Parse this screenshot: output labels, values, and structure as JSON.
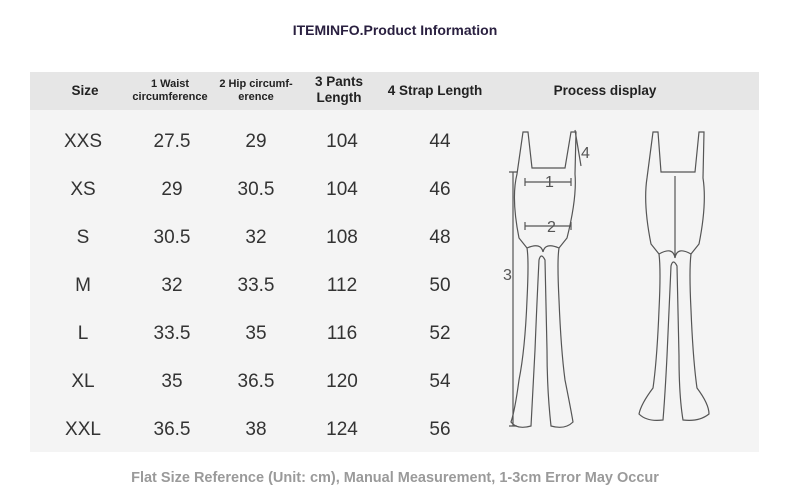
{
  "title": "ITEMINFO.Product Information",
  "headers": {
    "size": "Size",
    "waist_1": "1 Waist",
    "waist_2": "circumference",
    "hip_1": "2 Hip circumf-",
    "hip_2": "erence",
    "pants_1": "3 Pants",
    "pants_2": "Length",
    "strap": "4 Strap Length",
    "process": "Process display"
  },
  "rows": [
    {
      "size": "XXS",
      "waist": "27.5",
      "hip": "29",
      "pants": "104",
      "strap": "44"
    },
    {
      "size": "XS",
      "waist": "29",
      "hip": "30.5",
      "pants": "104",
      "strap": "46"
    },
    {
      "size": "S",
      "waist": "30.5",
      "hip": "32",
      "pants": "108",
      "strap": "48"
    },
    {
      "size": "M",
      "waist": "32",
      "hip": "33.5",
      "pants": "112",
      "strap": "50"
    },
    {
      "size": "L",
      "waist": "33.5",
      "hip": "35",
      "pants": "116",
      "strap": "52"
    },
    {
      "size": "XL",
      "waist": "35",
      "hip": "36.5",
      "pants": "120",
      "strap": "54"
    },
    {
      "size": "XXL",
      "waist": "36.5",
      "hip": "38",
      "pants": "124",
      "strap": "56"
    }
  ],
  "diagram_labels": {
    "m1": "1",
    "m2": "2",
    "m3": "3",
    "m4": "4"
  },
  "footer": "Flat Size Reference (Unit: cm), Manual Measurement, 1-3cm Error May Occur"
}
